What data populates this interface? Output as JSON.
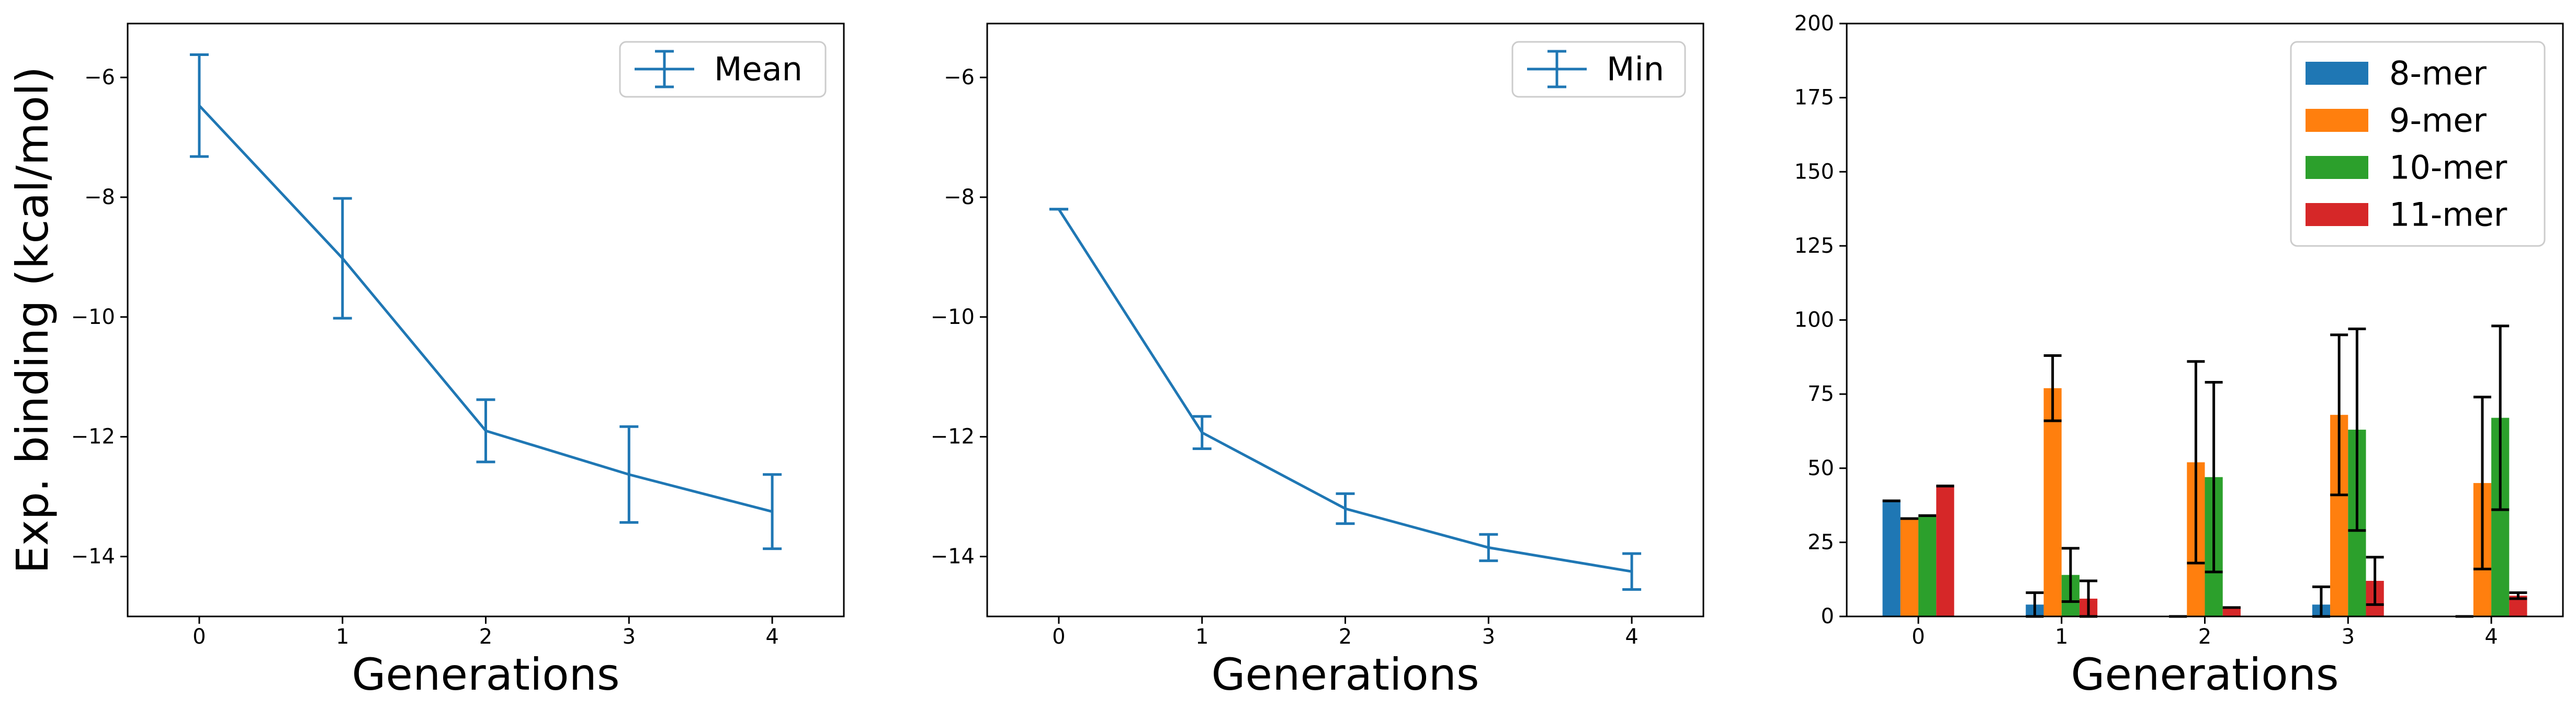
{
  "figure": {
    "shared_ylabel": "Exp. binding (kcal/mol)"
  },
  "chart_data": [
    {
      "type": "line",
      "id": "mean",
      "x": [
        0,
        1,
        2,
        3,
        4
      ],
      "y": [
        -6.47,
        -9.02,
        -11.9,
        -12.63,
        -13.25
      ],
      "yerr": [
        0.85,
        1.0,
        0.52,
        0.8,
        0.62
      ],
      "xlim": [
        -0.5,
        4.5
      ],
      "ylim": [
        -15,
        -5.1
      ],
      "xticks": [
        "0",
        "1",
        "2",
        "3",
        "4"
      ],
      "yticks": [
        -6,
        -8,
        -10,
        -12,
        -14
      ],
      "ytick_labels": [
        "−6",
        "−8",
        "−10",
        "−12",
        "−14"
      ],
      "xlabel": "Generations",
      "ylabel": "Exp. binding (kcal/mol)",
      "legend": [
        "Mean"
      ],
      "legend_position": "top-right",
      "grid": false,
      "color": "#1f77b4"
    },
    {
      "type": "line",
      "id": "min",
      "x": [
        0,
        1,
        2,
        3,
        4
      ],
      "y": [
        -8.2,
        -11.93,
        -13.2,
        -13.85,
        -14.25
      ],
      "yerr": [
        0.0,
        0.27,
        0.25,
        0.22,
        0.3
      ],
      "xlim": [
        -0.5,
        4.5
      ],
      "ylim": [
        -15,
        -5.1
      ],
      "xticks": [
        "0",
        "1",
        "2",
        "3",
        "4"
      ],
      "yticks": [
        -6,
        -8,
        -10,
        -12,
        -14
      ],
      "ytick_labels": [
        "−6",
        "−8",
        "−10",
        "−12",
        "−14"
      ],
      "xlabel": "Generations",
      "ylabel": "",
      "legend": [
        "Min"
      ],
      "legend_position": "top-right",
      "grid": false,
      "color": "#1f77b4"
    },
    {
      "type": "bar",
      "id": "counts",
      "categories": [
        "0",
        "1",
        "2",
        "3",
        "4"
      ],
      "series": [
        {
          "name": "8-mer",
          "color": "#1f77b4",
          "values": [
            39,
            4,
            0,
            4,
            0
          ],
          "yerr": [
            0,
            4,
            0,
            6,
            0
          ]
        },
        {
          "name": "9-mer",
          "color": "#ff7f0e",
          "values": [
            33,
            77,
            52,
            68,
            45
          ],
          "yerr": [
            0,
            11,
            34,
            27,
            29
          ]
        },
        {
          "name": "10-mer",
          "color": "#2ca02c",
          "values": [
            34,
            14,
            47,
            63,
            67
          ],
          "yerr": [
            0,
            9,
            32,
            34,
            31
          ]
        },
        {
          "name": "11-mer",
          "color": "#d62728",
          "values": [
            44,
            6,
            3,
            12,
            7
          ],
          "yerr": [
            0,
            6,
            0,
            8,
            1
          ]
        }
      ],
      "xlim": [
        -0.5,
        4.5
      ],
      "ylim": [
        0,
        200
      ],
      "yticks": [
        0,
        25,
        50,
        75,
        100,
        125,
        150,
        175,
        200
      ],
      "ytick_labels": [
        "0",
        "25",
        "50",
        "75",
        "100",
        "125",
        "150",
        "175",
        "200"
      ],
      "xlabel": "Generations",
      "ylabel": "",
      "legend": [
        "8-mer",
        "9-mer",
        "10-mer",
        "11-mer"
      ],
      "legend_position": "top-right",
      "grid": false
    }
  ]
}
